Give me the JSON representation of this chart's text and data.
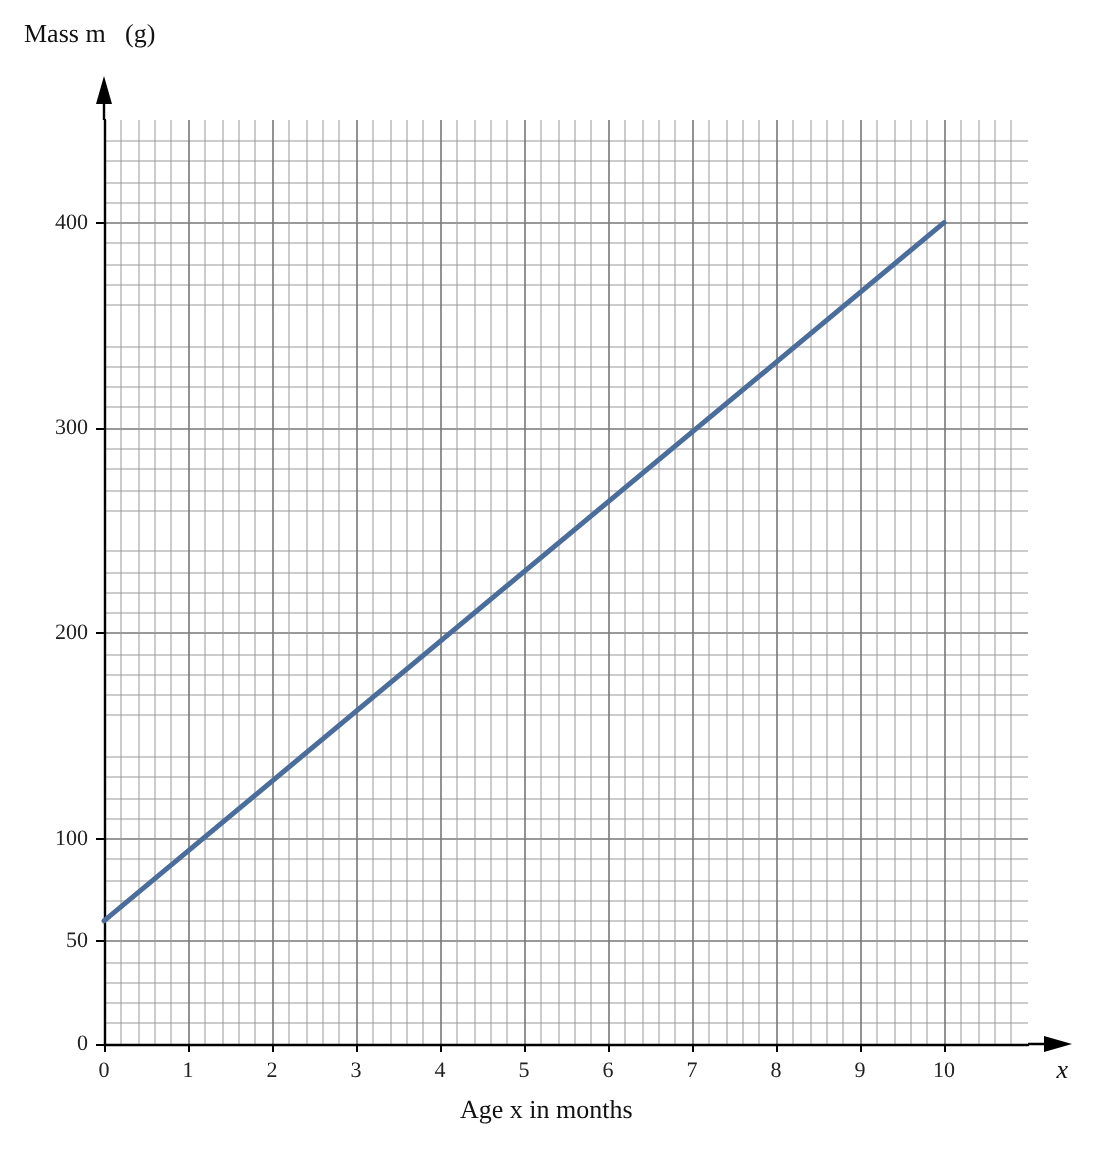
{
  "chart_data": {
    "type": "line",
    "ylabel": "Mass m   (g)",
    "xlabel": "Age x in months",
    "annotations": [
      "x"
    ],
    "series": [
      {
        "color": "#4a6d9b",
        "x": [
          0,
          10
        ],
        "values": [
          60,
          400
        ]
      }
    ],
    "xlim": [
      0,
      11
    ],
    "xticks": [
      0,
      1,
      2,
      3,
      4,
      5,
      6,
      7,
      8,
      9,
      10
    ],
    "ylim": [
      0,
      450
    ],
    "yticks": [
      0,
      50,
      100,
      200,
      300,
      400
    ],
    "grid": true,
    "marker": "none",
    "line_style": "solid"
  }
}
